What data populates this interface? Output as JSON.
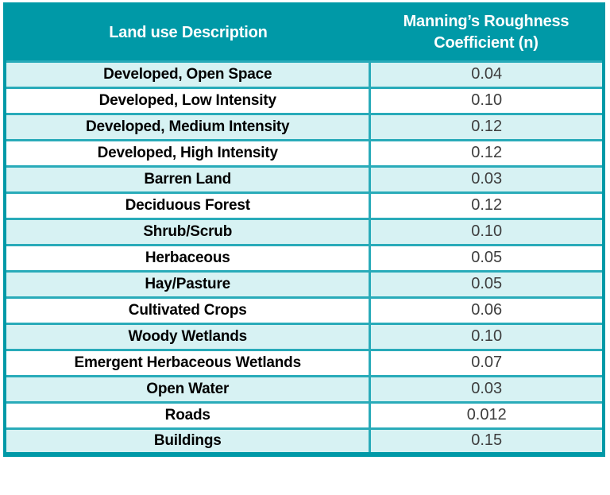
{
  "table": {
    "columns": [
      "Land use Description",
      "Manning’s Roughness Coefficient (n)"
    ],
    "rows": [
      {
        "land_use": "Developed, Open Space",
        "n": "0.04"
      },
      {
        "land_use": "Developed, Low Intensity",
        "n": "0.10"
      },
      {
        "land_use": "Developed, Medium Intensity",
        "n": "0.12"
      },
      {
        "land_use": "Developed, High Intensity",
        "n": "0.12"
      },
      {
        "land_use": "Barren Land",
        "n": "0.03"
      },
      {
        "land_use": "Deciduous Forest",
        "n": "0.12"
      },
      {
        "land_use": "Shrub/Scrub",
        "n": "0.10"
      },
      {
        "land_use": "Herbaceous",
        "n": "0.05"
      },
      {
        "land_use": "Hay/Pasture",
        "n": "0.05"
      },
      {
        "land_use": "Cultivated Crops",
        "n": "0.06"
      },
      {
        "land_use": "Woody Wetlands",
        "n": "0.10"
      },
      {
        "land_use": "Emergent Herbaceous Wetlands",
        "n": "0.07"
      },
      {
        "land_use": "Open Water",
        "n": "0.03"
      },
      {
        "land_use": "Roads",
        "n": "0.012"
      },
      {
        "land_use": "Buildings",
        "n": "0.15"
      }
    ]
  },
  "colors": {
    "header_bg": "#0099A7",
    "alt_row_bg": "#D7F2F3",
    "grid_border": "#29ABB9",
    "header_text": "#FFFFFF",
    "label_text": "#000000",
    "value_text": "#3E3E3E"
  }
}
